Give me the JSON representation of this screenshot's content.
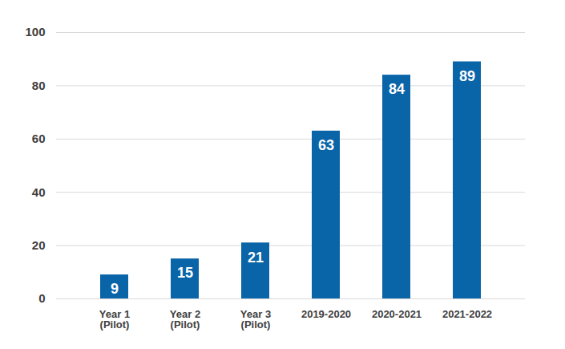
{
  "chart_data": {
    "type": "bar",
    "categories": [
      "Year 1 (Pilot)",
      "Year 2 (Pilot)",
      "Year 3 (Pilot)",
      "2019-2020",
      "2020-2021",
      "2021-2022"
    ],
    "values": [
      9,
      15,
      21,
      63,
      84,
      89
    ],
    "color": "#0a64a8",
    "ylim": [
      0,
      100
    ],
    "yticks": [
      0,
      20,
      40,
      60,
      80,
      100
    ],
    "grid": true,
    "data_labels": true
  }
}
